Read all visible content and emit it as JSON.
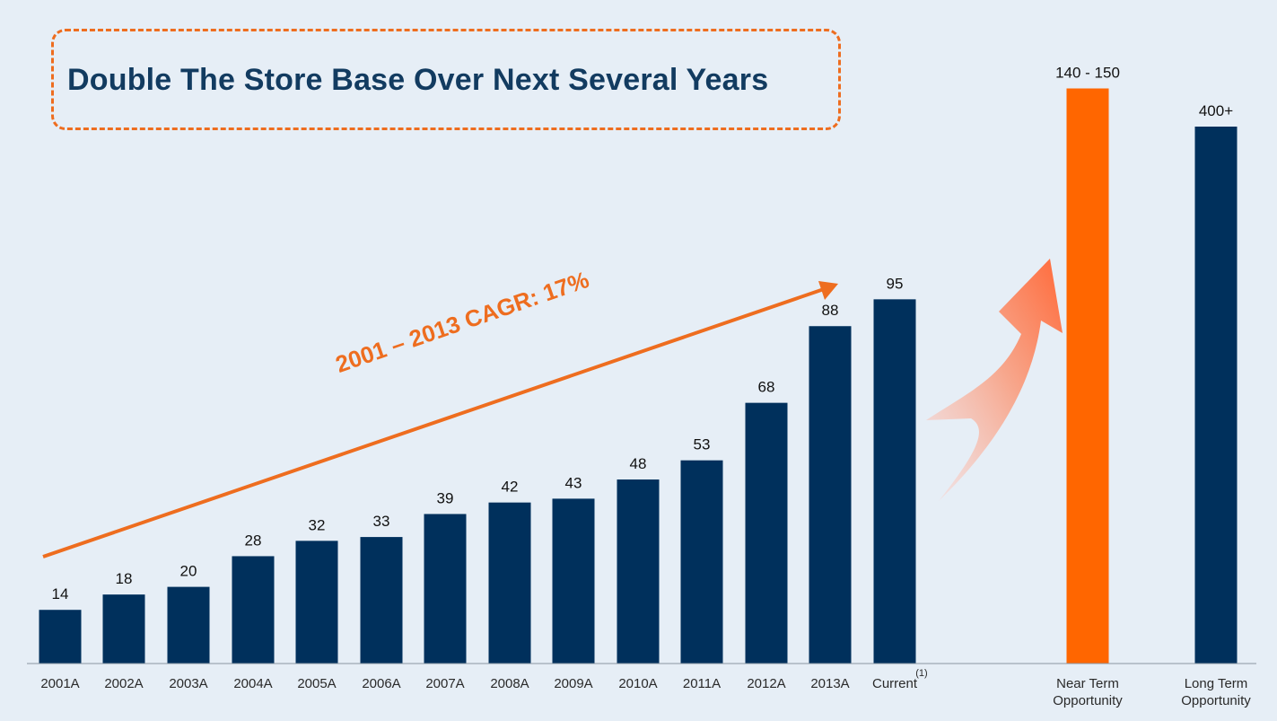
{
  "title": "Double The Store Base Over Next Several Years",
  "annotation": {
    "cagr_label": "2001 – 2013 CAGR: 17%",
    "footnote_marker": "(1)"
  },
  "colors": {
    "background": "#e6eef6",
    "bar_primary": "#00305c",
    "bar_highlight": "#ff6600",
    "accent_orange": "#ee6d1f",
    "title": "#123b60"
  },
  "chart_data": {
    "type": "bar",
    "title": "Double The Store Base Over Next Several Years",
    "xlabel": "",
    "ylabel": "",
    "ylim": [
      0,
      410
    ],
    "categories": [
      "2001A",
      "2002A",
      "2003A",
      "2004A",
      "2005A",
      "2006A",
      "2007A",
      "2008A",
      "2009A",
      "2010A",
      "2011A",
      "2012A",
      "2013A",
      "Current",
      "Near Term Opportunity",
      "Long Term Opportunity"
    ],
    "values": [
      14,
      18,
      20,
      28,
      32,
      33,
      39,
      42,
      43,
      48,
      53,
      68,
      88,
      95,
      150,
      400
    ],
    "data_labels": [
      "14",
      "18",
      "20",
      "28",
      "32",
      "33",
      "39",
      "42",
      "43",
      "48",
      "53",
      "68",
      "88",
      "95",
      "140 - 150",
      "400+"
    ],
    "bar_colors": [
      "#00305c",
      "#00305c",
      "#00305c",
      "#00305c",
      "#00305c",
      "#00305c",
      "#00305c",
      "#00305c",
      "#00305c",
      "#00305c",
      "#00305c",
      "#00305c",
      "#00305c",
      "#00305c",
      "#ff6600",
      "#00305c"
    ],
    "grid": false,
    "legend": "none"
  }
}
